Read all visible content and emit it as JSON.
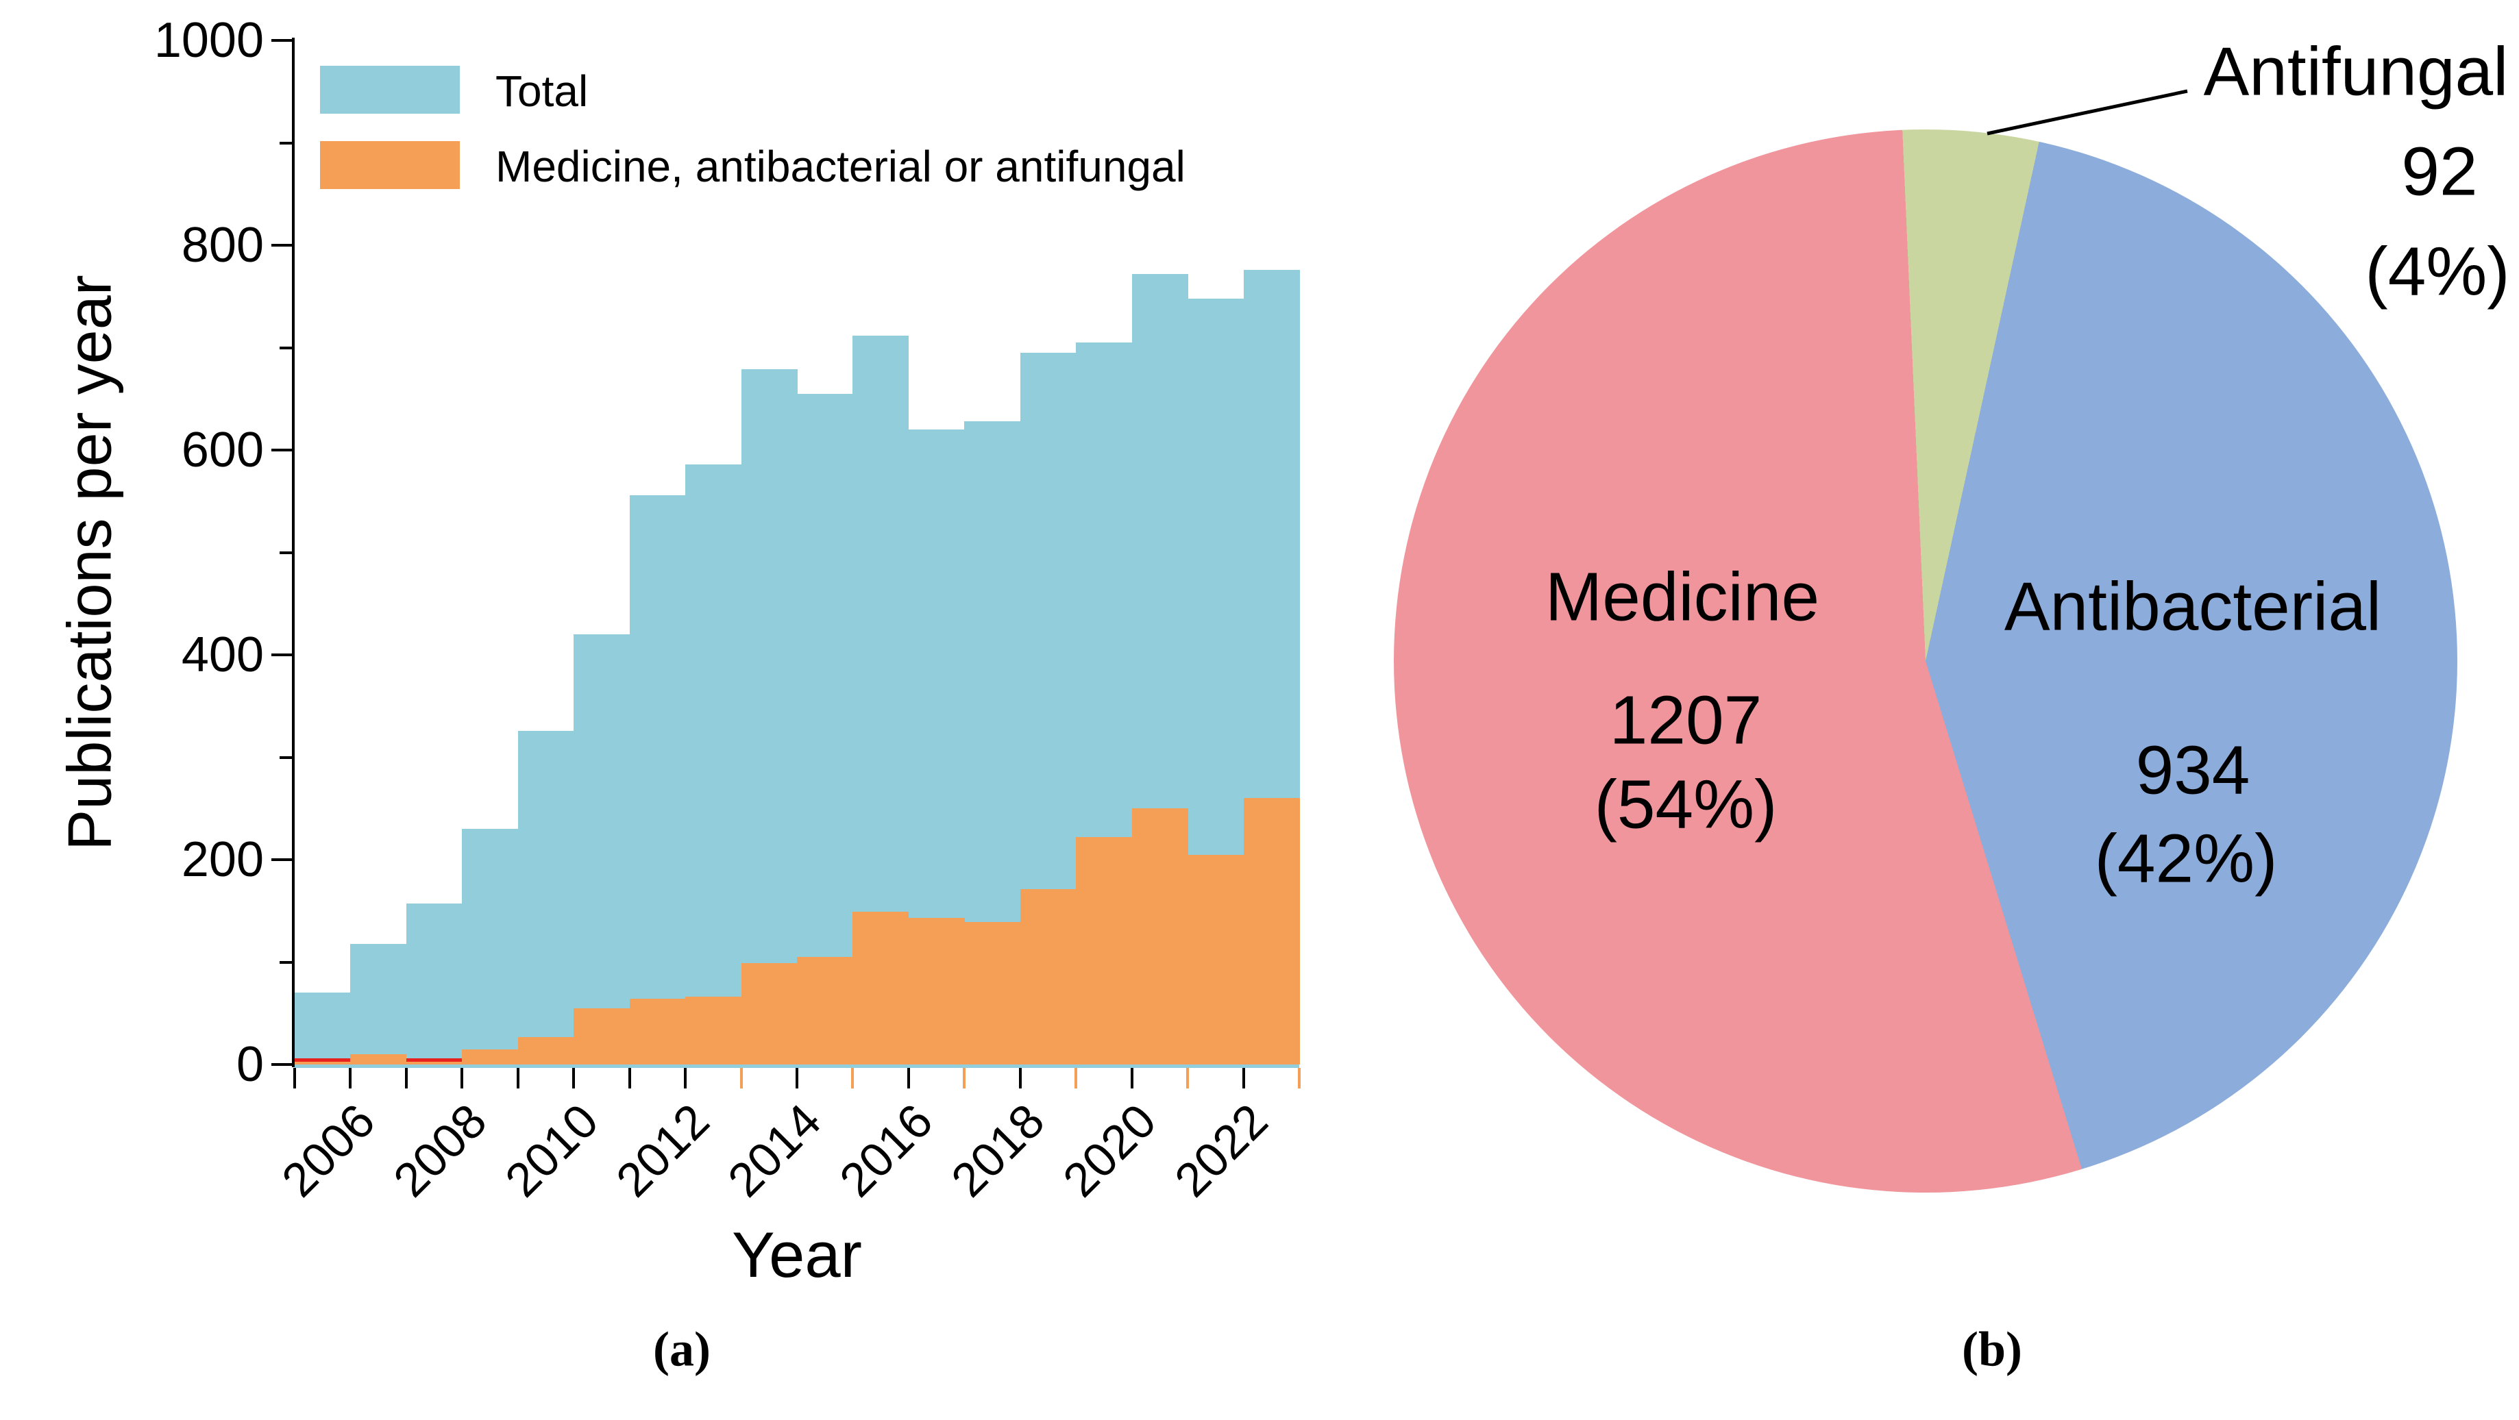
{
  "figure": {
    "panel_a_caption": "(a)",
    "panel_b_caption": "(b)"
  },
  "colors": {
    "bar_total": "#92CDDC",
    "bar_medicine": "#F59E55",
    "red_baseline": "#E8201E",
    "axis_black": "#000000",
    "tick_alt_orange": "#F59E55",
    "pie_medicine": "#F0959C",
    "pie_antibacterial": "#8CACDB",
    "pie_antifungal": "#C9D6A0"
  },
  "chart_data": [
    {
      "type": "bar",
      "title": "",
      "xlabel": "Year",
      "ylabel": "Publications per year",
      "ylim": [
        0,
        1000
      ],
      "y_major_ticks": [
        0,
        200,
        400,
        600,
        800,
        1000
      ],
      "y_minor_ticks": [
        100,
        300,
        500,
        700,
        900
      ],
      "x_tick_labels": [
        "2006",
        "2008",
        "2010",
        "2012",
        "2014",
        "2016",
        "2018",
        "2020",
        "2022"
      ],
      "categories": [
        2005,
        2006,
        2007,
        2008,
        2009,
        2010,
        2011,
        2012,
        2013,
        2014,
        2015,
        2016,
        2017,
        2018,
        2019,
        2020,
        2021,
        2022
      ],
      "series": [
        {
          "name": "Total",
          "color_key": "bar_total",
          "values": [
            70,
            118,
            157,
            230,
            326,
            420,
            556,
            586,
            679,
            655,
            712,
            620,
            628,
            695,
            705,
            772,
            748,
            776
          ]
        },
        {
          "name": "Medicine, antibacterial or antifungal",
          "color_key": "bar_medicine",
          "values": [
            3,
            10,
            3,
            15,
            27,
            55,
            64,
            66,
            99,
            105,
            149,
            143,
            139,
            171,
            222,
            250,
            205,
            260
          ]
        }
      ],
      "baseline_red_series": {
        "approx_value": 3,
        "color_key": "red_baseline"
      },
      "legend_position": "top-left-inside",
      "grid": false
    },
    {
      "type": "pie",
      "start_angle_deg": -2.5,
      "slices": [
        {
          "label": "Antifungal",
          "value": 92,
          "pct_display": "(4%)",
          "color_key": "pie_antifungal"
        },
        {
          "label": "Antibacterial",
          "value": 934,
          "pct_display": "(42%)",
          "color_key": "pie_antibacterial"
        },
        {
          "label": "Medicine",
          "value": 1207,
          "pct_display": "(54%)",
          "color_key": "pie_medicine"
        }
      ],
      "legend_position": "labels-on-slices, antifungal labeled outside with leader line"
    }
  ]
}
